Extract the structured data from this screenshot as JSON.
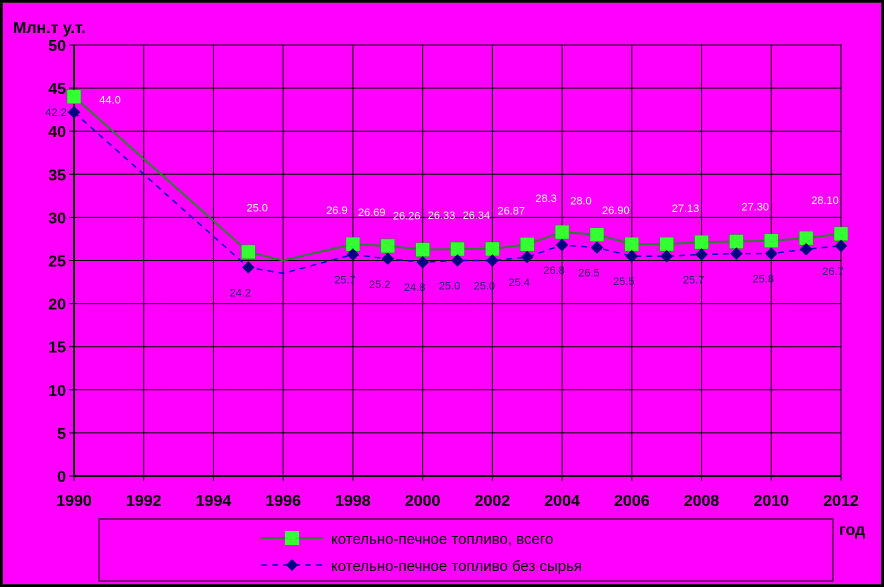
{
  "chart_data": {
    "type": "line",
    "ylabel": "Млн.т у.т.",
    "xlabel": "год",
    "xlim": [
      1990,
      2012
    ],
    "ylim": [
      0,
      50
    ],
    "x_ticks": [
      "1990",
      "1992",
      "1994",
      "1996",
      "1998",
      "2000",
      "2002",
      "2004",
      "2006",
      "2008",
      "2010",
      "2012"
    ],
    "y_ticks": [
      "0",
      "5",
      "10",
      "15",
      "20",
      "25",
      "30",
      "35",
      "40",
      "45",
      "50"
    ],
    "grid": true,
    "legend_position": "bottom",
    "series": [
      {
        "name": "котельно-печное топливо, всего",
        "color": "#2e7d32",
        "marker_color": "#33ff33",
        "marker": "square",
        "line_style": "solid",
        "x": [
          1990,
          1995,
          1996,
          1998,
          1999,
          2000,
          2001,
          2002,
          2003,
          2004,
          2005,
          2006,
          2007,
          2008,
          2009,
          2010,
          2011,
          2012
        ],
        "values": [
          44.0,
          26.0,
          25.0,
          26.9,
          26.69,
          26.26,
          26.33,
          26.34,
          26.87,
          28.3,
          28.0,
          26.9,
          26.9,
          27.13,
          27.2,
          27.3,
          27.6,
          28.1
        ],
        "labels": [
          "44.0",
          "",
          "25.0",
          "26.9",
          "26.69",
          "26.26",
          "26.33",
          "26.34",
          "26.87",
          "28.3",
          "28.0",
          "26.90",
          "",
          "27.13",
          "",
          "27.30",
          "",
          "28.10"
        ],
        "label_x": [
          1990,
          1995,
          1996,
          1998,
          1999,
          2000,
          2001,
          2002,
          2003,
          2004,
          2005,
          2006,
          2007,
          2008,
          2009,
          2010,
          2011,
          2012
        ]
      },
      {
        "name": "котельно-печное топливо без сырья",
        "color": "#0000cc",
        "marker_color": "#000080",
        "marker": "diamond",
        "line_style": "dashed",
        "x": [
          1990,
          1995,
          1996,
          1998,
          1999,
          2000,
          2001,
          2002,
          2003,
          2004,
          2005,
          2006,
          2007,
          2008,
          2009,
          2010,
          2011,
          2012
        ],
        "values": [
          42.2,
          24.2,
          23.5,
          25.7,
          25.2,
          24.8,
          25.0,
          25.0,
          25.4,
          26.8,
          26.5,
          25.5,
          25.5,
          25.7,
          25.8,
          25.8,
          26.3,
          26.7
        ],
        "labels": [
          "42.2",
          "24.2",
          "",
          "25.7",
          "25.2",
          "24.8",
          "25.0",
          "25.0",
          "25.4",
          "26.8",
          "26.5",
          "25.5",
          "",
          "25.7",
          "",
          "25.8",
          "",
          "26.7"
        ]
      }
    ]
  }
}
